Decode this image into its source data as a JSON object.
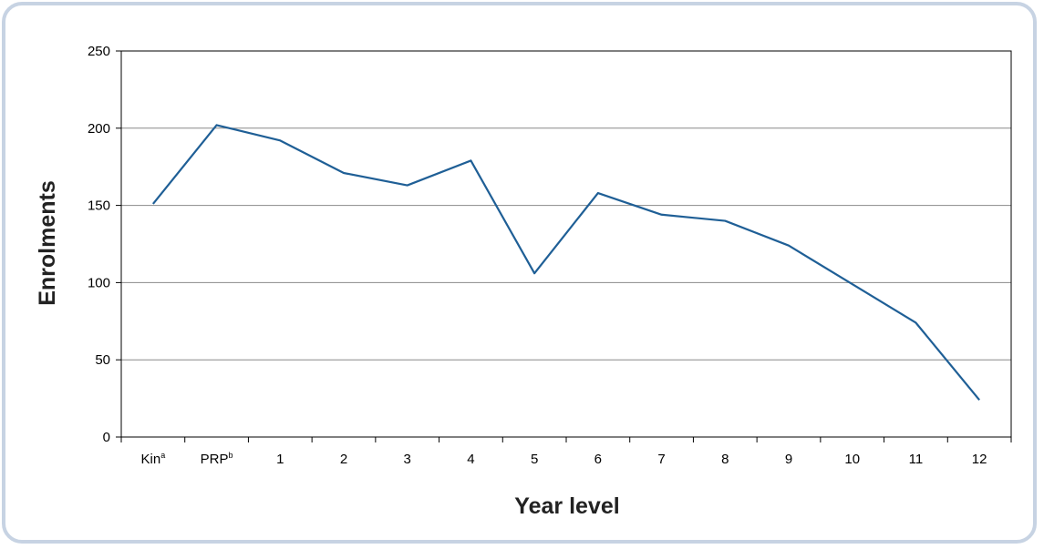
{
  "chart_data": {
    "type": "line",
    "title": "",
    "xlabel": "Year level",
    "ylabel": "Enrolments",
    "categories": [
      "Kin",
      "PRP",
      "1",
      "2",
      "3",
      "4",
      "5",
      "6",
      "7",
      "8",
      "9",
      "10",
      "11",
      "12"
    ],
    "category_superscripts": [
      "a",
      "b",
      "",
      "",
      "",
      "",
      "",
      "",
      "",
      "",
      "",
      "",
      "",
      ""
    ],
    "series": [
      {
        "values": [
          151,
          202,
          192,
          171,
          163,
          179,
          106,
          158,
          144,
          140,
          124,
          99,
          74,
          24
        ],
        "color": "#1f5f96"
      }
    ],
    "ylim": [
      0,
      250
    ],
    "yticks": [
      0,
      50,
      100,
      150,
      200,
      250
    ],
    "grid": true,
    "legend": "none"
  },
  "colors": {
    "frame_border": "#c7d3e3",
    "gridline": "#888888",
    "axis": "#000000"
  }
}
